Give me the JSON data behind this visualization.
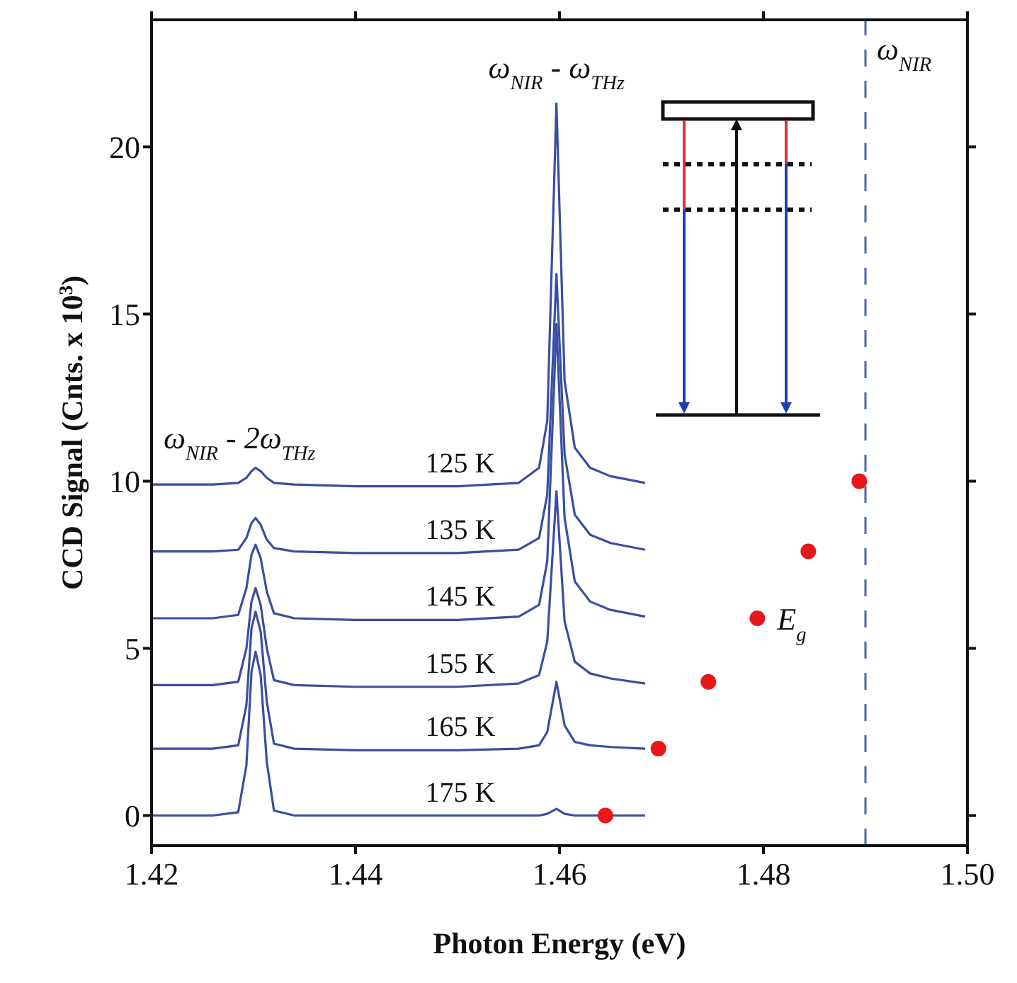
{
  "chart_data": {
    "type": "line",
    "xlabel": "Photon Energy (eV)",
    "ylabel": "CCD Signal (Cnts. x 10$^{3}$)",
    "xlim": [
      1.42,
      1.5
    ],
    "xticks": [
      {
        "value": 1.42,
        "label": "1.42"
      },
      {
        "value": 1.44,
        "label": "1.44"
      },
      {
        "value": 1.46,
        "label": "1.46"
      },
      {
        "value": 1.48,
        "label": "1.48"
      },
      {
        "value": 1.5,
        "label": "1.50"
      }
    ],
    "ylim": [
      -0.9,
      23.8
    ],
    "yticks": [
      0,
      5,
      10,
      15,
      20
    ],
    "grid": false,
    "marker": "none",
    "line_style": "solid",
    "series": [
      {
        "name": "125 K",
        "color": "#3a4fa0",
        "x": [
          1.42,
          1.426,
          1.4285,
          1.4293,
          1.4298,
          1.4302,
          1.4307,
          1.4313,
          1.432,
          1.434,
          1.44,
          1.45,
          1.456,
          1.458,
          1.4588,
          1.4597,
          1.4605,
          1.4615,
          1.463,
          1.465,
          1.4684
        ],
        "values": [
          9.9,
          9.9,
          9.95,
          10.1,
          10.3,
          10.4,
          10.3,
          10.1,
          9.95,
          9.9,
          9.85,
          9.85,
          9.95,
          10.4,
          11.8,
          21.3,
          13,
          11,
          10.4,
          10.15,
          9.95
        ]
      },
      {
        "name": "135 K",
        "color": "#3a4fa0",
        "x": [
          1.42,
          1.426,
          1.4285,
          1.4293,
          1.4298,
          1.4302,
          1.4307,
          1.4313,
          1.432,
          1.434,
          1.44,
          1.45,
          1.456,
          1.458,
          1.4588,
          1.4597,
          1.4605,
          1.4615,
          1.463,
          1.465,
          1.4684
        ],
        "values": [
          7.9,
          7.9,
          7.95,
          8.3,
          8.75,
          8.9,
          8.7,
          8.25,
          8,
          7.9,
          7.85,
          7.85,
          7.95,
          8.3,
          9.6,
          16.2,
          10.8,
          9,
          8.4,
          8.15,
          7.95
        ]
      },
      {
        "name": "145 K",
        "color": "#3a4fa0",
        "x": [
          1.42,
          1.426,
          1.4285,
          1.4293,
          1.4298,
          1.4302,
          1.4307,
          1.4313,
          1.432,
          1.434,
          1.44,
          1.45,
          1.456,
          1.458,
          1.4588,
          1.4597,
          1.4605,
          1.4615,
          1.463,
          1.465,
          1.4684
        ],
        "values": [
          5.9,
          5.9,
          6,
          6.8,
          7.8,
          8.1,
          7.7,
          6.7,
          6.05,
          5.9,
          5.85,
          5.85,
          5.95,
          6.3,
          7.6,
          14.7,
          8.9,
          7,
          6.4,
          6.15,
          5.95
        ]
      },
      {
        "name": "155 K",
        "color": "#3a4fa0",
        "x": [
          1.42,
          1.426,
          1.4285,
          1.4293,
          1.4298,
          1.4302,
          1.4307,
          1.4313,
          1.432,
          1.434,
          1.44,
          1.45,
          1.456,
          1.458,
          1.4588,
          1.4597,
          1.4605,
          1.4615,
          1.463,
          1.465,
          1.4684
        ],
        "values": [
          3.9,
          3.9,
          4,
          5,
          6.4,
          6.8,
          6.3,
          5,
          4.05,
          3.9,
          3.85,
          3.85,
          3.95,
          4.2,
          5.2,
          9.7,
          5.8,
          4.6,
          4.25,
          4.1,
          3.95
        ]
      },
      {
        "name": "165 K",
        "color": "#3a4fa0",
        "x": [
          1.42,
          1.426,
          1.4285,
          1.4293,
          1.4298,
          1.4302,
          1.4307,
          1.4313,
          1.432,
          1.434,
          1.44,
          1.45,
          1.456,
          1.458,
          1.4588,
          1.4597,
          1.4605,
          1.4615,
          1.463,
          1.465,
          1.4684
        ],
        "values": [
          2,
          2,
          2.1,
          3.3,
          5.6,
          6.1,
          5.5,
          3.4,
          2.15,
          2,
          1.95,
          1.95,
          2,
          2.1,
          2.5,
          4,
          2.7,
          2.2,
          2.1,
          2.05,
          2
        ]
      },
      {
        "name": "175 K",
        "color": "#3a4fa0",
        "x": [
          1.42,
          1.426,
          1.4285,
          1.4293,
          1.4298,
          1.4302,
          1.4307,
          1.4313,
          1.432,
          1.434,
          1.44,
          1.45,
          1.456,
          1.458,
          1.4588,
          1.4597,
          1.4605,
          1.4615,
          1.463,
          1.465,
          1.4684
        ],
        "values": [
          0,
          0,
          0.1,
          1.5,
          4.3,
          4.9,
          4.2,
          1.6,
          0.15,
          0,
          0,
          0,
          0,
          0,
          0.05,
          0.2,
          0.05,
          0,
          0,
          0,
          0
        ]
      },
      {
        "name": "E$_{g}$",
        "type": "scatter",
        "marker": "circle",
        "color": "#e8171b",
        "x": [
          1.4645,
          1.4697,
          1.4746,
          1.4794,
          1.4844,
          1.4894
        ],
        "values": [
          0,
          2,
          4,
          5.9,
          7.9,
          10
        ]
      }
    ],
    "ref_lines": [
      {
        "axis": "x",
        "value": 1.49,
        "label": "ω$_{NIR}$",
        "color": "#5a6fb0",
        "line_style": "dashed"
      }
    ],
    "annotations": [
      {
        "text": "ω$_{NIR}$ - ω$_{THz}$",
        "x": 1.4597,
        "y": 21.3
      },
      {
        "text": "ω$_{NIR}$ - 2ω$_{THz}$",
        "x": 1.4302,
        "y": 10.4
      }
    ]
  }
}
